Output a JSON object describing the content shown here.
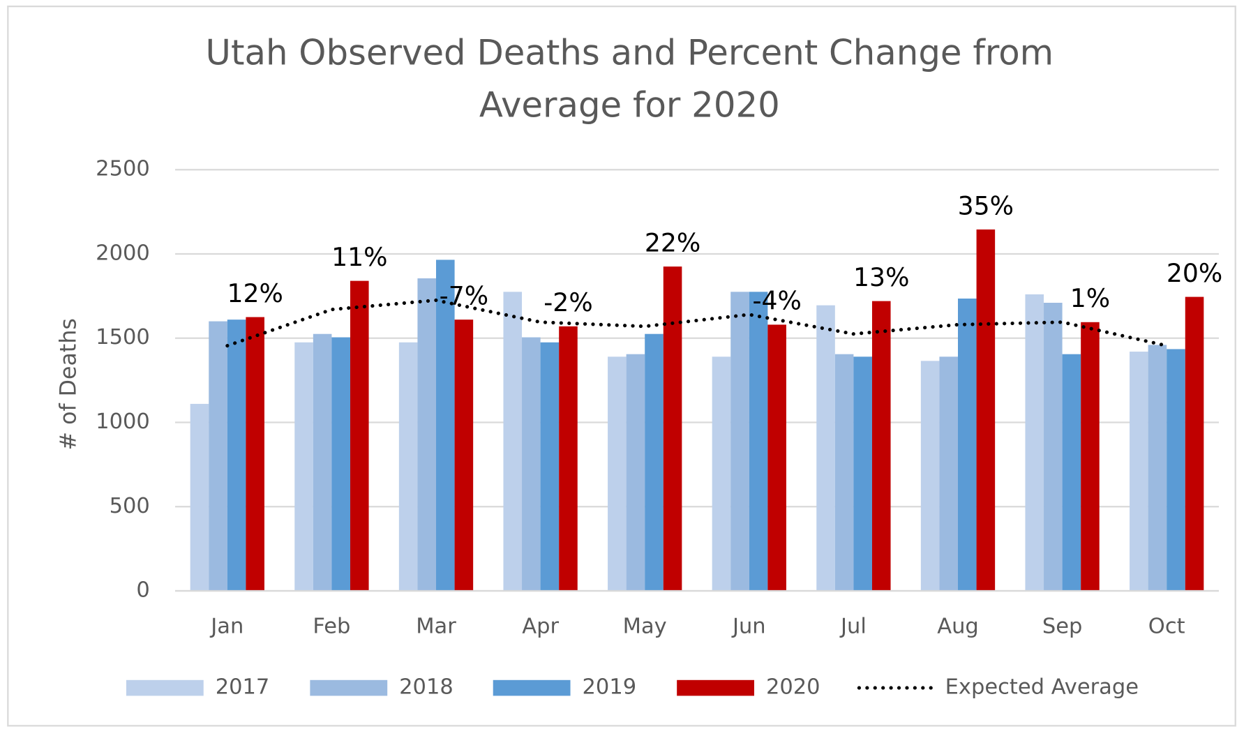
{
  "chart_data": {
    "type": "bar",
    "title": [
      "Utah Observed Deaths and Percent Change from",
      "Average for 2020"
    ],
    "y_label": "# of Deaths",
    "categories": [
      "Jan",
      "Feb",
      "Mar",
      "Apr",
      "May",
      "Jun",
      "Jul",
      "Aug",
      "Sep",
      "Oct"
    ],
    "series": [
      {
        "name": "2017",
        "color": "#bdd0eb",
        "values": [
          1110,
          1475,
          1475,
          1775,
          1390,
          1390,
          1695,
          1365,
          1760,
          1420
        ]
      },
      {
        "name": "2018",
        "color": "#9bbae0",
        "values": [
          1600,
          1525,
          1855,
          1505,
          1405,
          1775,
          1405,
          1390,
          1710,
          1460
        ]
      },
      {
        "name": "2019",
        "color": "#5b9bd5",
        "values": [
          1610,
          1505,
          1965,
          1475,
          1525,
          1775,
          1390,
          1735,
          1405,
          1435
        ]
      },
      {
        "name": "2020",
        "color": "#c00000",
        "values": [
          1625,
          1840,
          1610,
          1570,
          1925,
          1580,
          1720,
          2145,
          1595,
          1745
        ]
      },
      {
        "name": "Expected Average",
        "type": "line",
        "style": "dotted",
        "color": "#000000",
        "values": [
          1455,
          1670,
          1725,
          1595,
          1570,
          1640,
          1525,
          1580,
          1595,
          1455
        ]
      }
    ],
    "annotations": [
      "12%",
      "11%",
      "-7%",
      "-2%",
      "22%",
      "-4%",
      "13%",
      "35%",
      "1%",
      "20%"
    ],
    "ylim": [
      0,
      2500
    ],
    "yticks": [
      0,
      500,
      1000,
      1500,
      2000,
      2500
    ],
    "grid": true,
    "legend": "bottom"
  }
}
